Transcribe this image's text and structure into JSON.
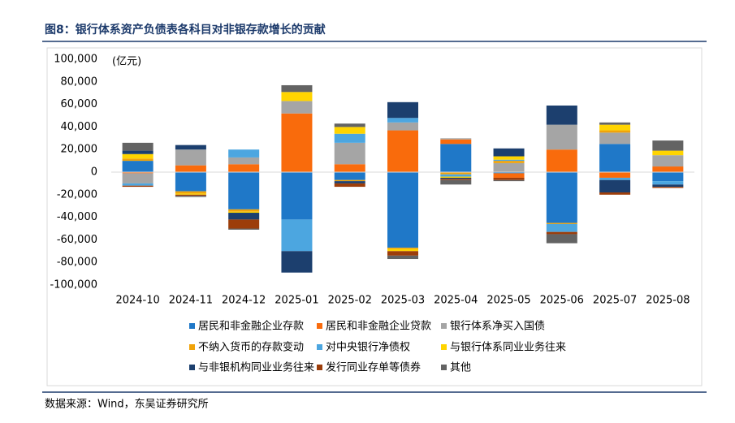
{
  "chart_data": {
    "type": "bar",
    "stacked": true,
    "title": "图8：银行体系资产负债表各科目对非银存款增长的贡献",
    "unit": "(亿元)",
    "source": "数据来源：Wind，东吴证券研究所",
    "categories": [
      "2024-10",
      "2024-11",
      "2024-12",
      "2025-01",
      "2025-02",
      "2025-03",
      "2025-04",
      "2025-05",
      "2025-06",
      "2025-07",
      "2025-08"
    ],
    "ylim": [
      -100000,
      100000
    ],
    "yticks": [
      {
        "value": -100000,
        "label": "-100,000"
      },
      {
        "value": -80000,
        "label": "-80,000"
      },
      {
        "value": -60000,
        "label": "-60,000"
      },
      {
        "value": -40000,
        "label": "-40,000"
      },
      {
        "value": -20000,
        "label": "-20,000"
      },
      0,
      {
        "value": 20000,
        "label": "20,000"
      },
      {
        "value": 40000,
        "label": "40,000"
      },
      {
        "value": 60000,
        "label": "60,000"
      },
      {
        "value": 80000,
        "label": "80,000"
      },
      {
        "value": 100000,
        "label": "100,000"
      }
    ],
    "grid": false,
    "series": [
      {
        "name": "居民和非金融企业存款",
        "color": "#1f78c8",
        "values": [
          10000,
          -17000,
          -33000,
          -42000,
          -7000,
          -67000,
          25000,
          -1000,
          -45000,
          25000,
          -8000
        ]
      },
      {
        "name": "居民和非金融企业贷款",
        "color": "#f96b0c",
        "values": [
          -1000,
          6000,
          7000,
          52000,
          7000,
          37000,
          4000,
          -4000,
          20000,
          -5000,
          5000
        ]
      },
      {
        "name": "银行体系净买入国债",
        "color": "#a5a5a5",
        "values": [
          -9000,
          14000,
          6000,
          11000,
          19000,
          7000,
          1000,
          8000,
          22000,
          10000,
          10000
        ]
      },
      {
        "name": "不纳入货币的存款变动",
        "color": "#f0a30a",
        "values": [
          2000,
          -2000,
          -2000,
          0,
          -1000,
          -1000,
          -2000,
          2000,
          -1000,
          2000,
          0
        ]
      },
      {
        "name": "对中央银行净债权",
        "color": "#4ca6e0",
        "values": [
          -2000,
          0,
          7000,
          -28000,
          8000,
          4000,
          -2000,
          1000,
          -7000,
          -2000,
          -3000
        ]
      },
      {
        "name": "与银行体系同业业务往来",
        "color": "#ffd400",
        "values": [
          4000,
          -1000,
          -1000,
          8000,
          6000,
          -2000,
          -1000,
          3000,
          0,
          5000,
          4000
        ]
      },
      {
        "name": "与非银机构同业业务往来",
        "color": "#1c3f6e",
        "values": [
          3000,
          4000,
          -6000,
          -19000,
          -2000,
          14000,
          -1000,
          7000,
          17000,
          -11000,
          -2000
        ]
      },
      {
        "name": "发行同业存单等债券",
        "color": "#9c3d0a",
        "values": [
          -1000,
          -1000,
          -8000,
          0,
          -3000,
          -4000,
          -1000,
          -2000,
          -2000,
          -2000,
          -1000
        ]
      },
      {
        "name": "其他",
        "color": "#636363",
        "values": [
          7000,
          -1000,
          -1000,
          6000,
          3000,
          -3000,
          -4000,
          -1000,
          -8000,
          2000,
          9000
        ]
      }
    ]
  }
}
